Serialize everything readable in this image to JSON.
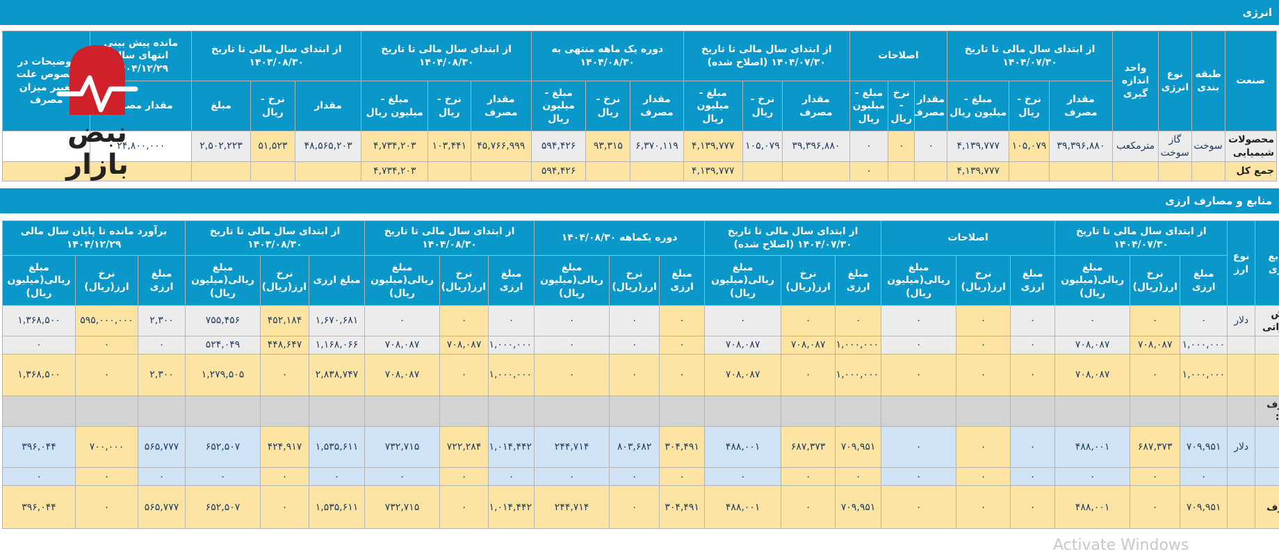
{
  "section1": {
    "title": "انرژی",
    "headers": {
      "industry": "صنعت",
      "classification": "طبقه بندی",
      "energy_type": "نوع انرژی",
      "unit": "واحد اندازه گیری",
      "g1": "از ابتدای سال مالی تا تاریخ ۱۴۰۴/۰۷/۳۰",
      "g2": "اصلاحات",
      "g3": "از ابتدای سال مالی تا تاریخ ۱۴۰۴/۰۷/۳۰ (اصلاح شده)",
      "g4": "دوره یک ماهه منتهی به ۱۴۰۴/۰۸/۳۰",
      "g5": "از ابتدای سال مالی تا تاریخ ۱۴۰۴/۰۸/۳۰",
      "g6": "از ابتدای سال مالی تا تاریخ ۱۴۰۳/۰۸/۳۰",
      "g7": "مانده پیش بینی انتهای سال ۱۴۰۴/۱۲/۲۹",
      "g8": "توضیحات در خصوص علت تغییر میزان مصرف",
      "sub_qty": "مقدار مصرف",
      "sub_rate": "نرخ - ریال",
      "sub_amount": "مبلغ - میلیون ریال",
      "sub_qty_short": "مقدار",
      "sub_rate2": "نرخ - ریال",
      "sub_amount_short": "مبلغ",
      "sub_qty_pred": "مقدار مصرف"
    },
    "row1": {
      "industry": "محصولات شیمیایی",
      "classification": "سوخت",
      "energy_type": "گاز سوخت",
      "unit": "مترمکعب",
      "v": [
        "۳۹,۳۹۶,۸۸۰",
        "۱۰۵,۰۷۹",
        "۴,۱۳۹,۷۷۷",
        "۰",
        "۰",
        "۰",
        "۳۹,۳۹۶,۸۸۰",
        "۱۰۵,۰۷۹",
        "۴,۱۳۹,۷۷۷",
        "۶,۳۷۰,۱۱۹",
        "۹۳,۳۱۵",
        "۵۹۴,۴۲۶",
        "۴۵,۷۶۶,۹۹۹",
        "۱۰۳,۴۴۱",
        "۴,۷۳۴,۲۰۳",
        "۴۸,۵۶۵,۲۰۳",
        "۵۱,۵۲۳",
        "۲,۵۰۲,۲۲۳",
        "۲۴,۸۰۰,۰۰۰",
        ""
      ]
    },
    "total": {
      "label": "جمع کل",
      "v": [
        "",
        "",
        "۴,۱۳۹,۷۷۷",
        "",
        "",
        "۰",
        "",
        "",
        "۴,۱۳۹,۷۷۷",
        "",
        "",
        "۵۹۴,۴۲۶",
        "",
        "",
        "۴,۷۳۴,۲۰۳",
        "",
        "",
        "",
        "",
        ""
      ]
    }
  },
  "section2": {
    "title": "منابع و مصارف ارزی",
    "headers": {
      "source": "منابع ارزی",
      "ctype": "نوع ارز",
      "g1": "از ابتدای سال مالی تا تاریخ ۱۴۰۴/۰۷/۳۰",
      "g2": "اصلاحات",
      "g3": "از ابتدای سال مالی تا تاریخ ۱۴۰۴/۰۷/۳۰ (اصلاح شده)",
      "g4": "دوره یکماهه ۱۴۰۴/۰۸/۳۰",
      "g5": "از ابتدای سال مالی تا تاریخ ۱۴۰۴/۰۸/۳۰",
      "g6": "از ابتدای سال مالی تا تاریخ ۱۴۰۳/۰۸/۳۰",
      "g7": "برآورد مانده تا پایان سال مالی ۱۴۰۴/۱۲/۲۹",
      "sub_famt": "مبلغ ارزی",
      "sub_frate": "نرخ ارز(ریال)",
      "sub_ramt": "مبلغ ریالی(میلیون ریال)",
      "sub_frate2": "نرخ ارز(ریال)"
    },
    "rows": [
      {
        "l": "فروش صادراتی",
        "t": "دلار",
        "c": "g",
        "v": [
          "۰",
          "۰",
          "۰",
          "۰",
          "۰",
          "۰",
          "۰",
          "۰",
          "۰",
          "۰",
          "۰",
          "۰",
          "۰",
          "۰",
          "۰",
          "۱,۶۷۰,۶۸۱",
          "۴۵۲,۱۸۴",
          "۷۵۵,۴۵۶",
          "۲,۳۰۰",
          "۵۹۵,۰۰۰,۰۰۰",
          "۱,۳۶۸,۵۰۰"
        ]
      },
      {
        "l": "سایر",
        "t": "",
        "c": "g",
        "v": [
          "۱,۰۰۰,۰۰۰",
          "۷۰۸,۰۸۷",
          "۷۰۸,۰۸۷",
          "۰",
          "۰",
          "۰",
          "۱,۰۰۰,۰۰۰",
          "۷۰۸,۰۸۷",
          "۷۰۸,۰۸۷",
          "۰",
          "۰",
          "۰",
          "۱,۰۰۰,۰۰۰",
          "۷۰۸,۰۸۷",
          "۷۰۸,۰۸۷",
          "۱,۱۶۸,۰۶۶",
          "۴۴۸,۶۴۷",
          "۵۲۴,۰۴۹",
          "۰",
          "۰",
          "۰"
        ]
      },
      {
        "l": "جمع منابع ارزی",
        "t": "",
        "c": "y",
        "v": [
          "۱,۰۰۰,۰۰۰",
          "۰",
          "۷۰۸,۰۸۷",
          "۰",
          "۰",
          "۰",
          "۱,۰۰۰,۰۰۰",
          "۰",
          "۷۰۸,۰۸۷",
          "۰",
          "۰",
          "۰",
          "۱,۰۰۰,۰۰۰",
          "۰",
          "۷۰۸,۰۸۷",
          "۲,۸۳۸,۷۴۷",
          "۰",
          "۱,۲۷۹,۵۰۵",
          "۲,۳۰۰",
          "۰",
          "۱,۳۶۸,۵۰۰"
        ]
      },
      {
        "l": "مصارف ارزی:",
        "t": "",
        "c": "d",
        "v": [
          "",
          "",
          "",
          "",
          "",
          "",
          "",
          "",
          "",
          "",
          "",
          "",
          "",
          "",
          "",
          "",
          "",
          "",
          "",
          "",
          ""
        ]
      },
      {
        "l": "خرید مواد اولیه",
        "t": "دلار",
        "c": "b",
        "v": [
          "۷۰۹,۹۵۱",
          "۶۸۷,۳۷۳",
          "۴۸۸,۰۰۱",
          "۰",
          "۰",
          "۰",
          "۷۰۹,۹۵۱",
          "۶۸۷,۳۷۳",
          "۴۸۸,۰۰۱",
          "۳۰۴,۴۹۱",
          "۸۰۳,۶۸۲",
          "۲۴۴,۷۱۴",
          "۱,۰۱۴,۴۴۲",
          "۷۲۲,۲۸۴",
          "۷۳۲,۷۱۵",
          "۱,۵۳۵,۶۱۱",
          "۴۲۴,۹۱۷",
          "۶۵۲,۵۰۷",
          "۵۶۵,۷۷۷",
          "۷۰۰,۰۰۰",
          "۳۹۶,۰۴۴"
        ]
      },
      {
        "l": "سایر",
        "t": "",
        "c": "b",
        "v": [
          "۰",
          "۰",
          "۰",
          "۰",
          "۰",
          "۰",
          "۰",
          "۰",
          "۰",
          "۰",
          "۰",
          "۰",
          "۰",
          "۰",
          "۰",
          "۰",
          "۰",
          "۰",
          "۰",
          "۰",
          "۰"
        ]
      },
      {
        "l": "جمع مصارف ارزی",
        "t": "",
        "c": "y",
        "v": [
          "۷۰۹,۹۵۱",
          "۰",
          "۴۸۸,۰۰۱",
          "۰",
          "۰",
          "۰",
          "۷۰۹,۹۵۱",
          "۰",
          "۴۸۸,۰۰۱",
          "۳۰۴,۴۹۱",
          "۰",
          "۲۴۴,۷۱۴",
          "۱,۰۱۴,۴۴۲",
          "۰",
          "۷۳۲,۷۱۵",
          "۱,۵۳۵,۶۱۱",
          "۰",
          "۶۵۲,۵۰۷",
          "۵۶۵,۷۷۷",
          "۰",
          "۳۹۶,۰۴۴"
        ]
      }
    ]
  },
  "logo": {
    "text": "نبض بازار",
    "color": "#d0212b"
  },
  "watermark": "Activate Windows"
}
